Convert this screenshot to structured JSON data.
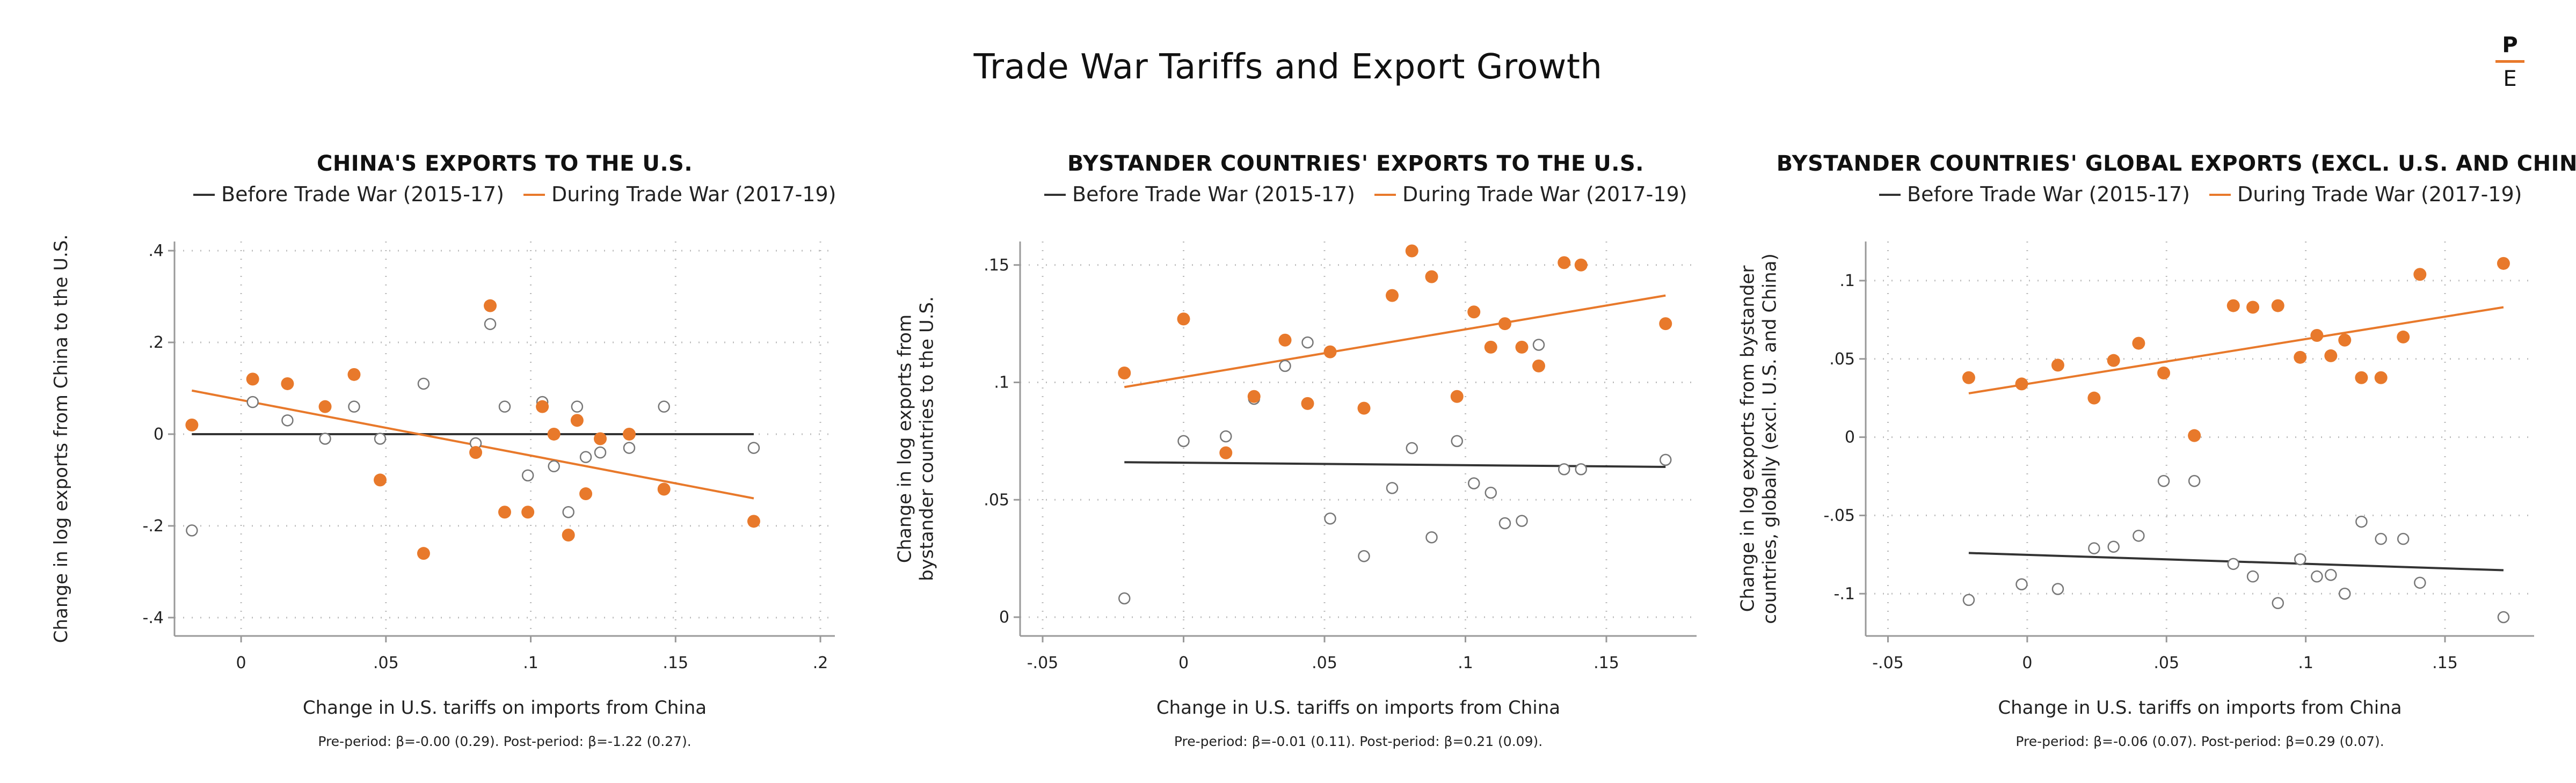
{
  "title": "Trade War Tariffs and Export Growth",
  "logo": {
    "top": "P",
    "bottom": "E",
    "accent": "#e8792b"
  },
  "colors": {
    "before": "#333333",
    "during": "#e8792b",
    "grid": "#bbbbbb",
    "axis": "#999999"
  },
  "chart_data": [
    {
      "type": "scatter",
      "title": "CHINA'S EXPORTS TO THE U.S.",
      "xlabel": "Change in U.S. tariffs on imports from China",
      "ylabel": "Change in log exports from China to the U.S.",
      "xlim": [
        -0.023,
        0.205
      ],
      "ylim": [
        -0.44,
        0.42
      ],
      "xticks": [
        0,
        0.05,
        0.1,
        0.15,
        0.2
      ],
      "xtick_labels": [
        "0",
        ".05",
        ".1",
        ".15",
        ".2"
      ],
      "yticks": [
        0.4,
        0.2,
        0,
        -0.2,
        -0.4
      ],
      "ytick_labels": [
        ".4",
        ".2",
        "0",
        "-.2",
        "-.4"
      ],
      "grid": true,
      "legend_position": "top",
      "note": "Pre-period: β=-0.00 (0.29). Post-period: β=-1.22 (0.27).",
      "series": [
        {
          "name": "Before Trade War (2015-17)",
          "marker": "hollow",
          "points": [
            [
              -0.017,
              -0.21
            ],
            [
              0.004,
              0.07
            ],
            [
              0.016,
              0.03
            ],
            [
              0.029,
              -0.01
            ],
            [
              0.039,
              0.06
            ],
            [
              0.048,
              -0.01
            ],
            [
              0.063,
              0.11
            ],
            [
              0.081,
              -0.02
            ],
            [
              0.086,
              0.24
            ],
            [
              0.091,
              0.06
            ],
            [
              0.099,
              -0.09
            ],
            [
              0.104,
              0.07
            ],
            [
              0.108,
              -0.07
            ],
            [
              0.113,
              -0.17
            ],
            [
              0.116,
              0.06
            ],
            [
              0.119,
              -0.05
            ],
            [
              0.124,
              -0.04
            ],
            [
              0.134,
              -0.03
            ],
            [
              0.146,
              0.06
            ],
            [
              0.177,
              -0.03
            ]
          ],
          "fit": [
            [
              -0.017,
              0.0
            ],
            [
              0.177,
              0.0
            ]
          ]
        },
        {
          "name": "During Trade War (2017-19)",
          "marker": "filled",
          "points": [
            [
              -0.017,
              0.02
            ],
            [
              0.004,
              0.12
            ],
            [
              0.016,
              0.11
            ],
            [
              0.029,
              0.06
            ],
            [
              0.039,
              0.13
            ],
            [
              0.048,
              -0.1
            ],
            [
              0.063,
              -0.26
            ],
            [
              0.081,
              -0.04
            ],
            [
              0.086,
              0.28
            ],
            [
              0.091,
              -0.17
            ],
            [
              0.099,
              -0.17
            ],
            [
              0.104,
              0.06
            ],
            [
              0.108,
              -0.0
            ],
            [
              0.113,
              -0.22
            ],
            [
              0.116,
              0.03
            ],
            [
              0.119,
              -0.13
            ],
            [
              0.124,
              -0.01
            ],
            [
              0.134,
              0.0
            ],
            [
              0.146,
              -0.12
            ],
            [
              0.177,
              -0.19
            ]
          ],
          "fit": [
            [
              -0.017,
              0.095
            ],
            [
              0.177,
              -0.14
            ]
          ]
        }
      ]
    },
    {
      "type": "scatter",
      "title": "BYSTANDER COUNTRIES' EXPORTS TO THE U.S.",
      "xlabel": "Change in U.S. tariffs on imports from China",
      "ylabel": "Change in log exports from bystander countries to the U.S.",
      "xlim": [
        -0.058,
        0.182
      ],
      "ylim": [
        -0.008,
        0.16
      ],
      "xticks": [
        -0.05,
        0,
        0.05,
        0.1,
        0.15
      ],
      "xtick_labels": [
        "-.05",
        "0",
        ".05",
        ".1",
        ".15"
      ],
      "yticks": [
        0.15,
        0.1,
        0.05,
        0
      ],
      "ytick_labels": [
        ".15",
        ".1",
        ".05",
        "0"
      ],
      "grid": true,
      "legend_position": "top",
      "note": "Pre-period: β=-0.01 (0.11). Post-period: β=0.21 (0.09).",
      "series": [
        {
          "name": "Before Trade War (2015-17)",
          "marker": "hollow",
          "points": [
            [
              -0.021,
              0.008
            ],
            [
              0.0,
              0.075
            ],
            [
              0.015,
              0.077
            ],
            [
              0.025,
              0.093
            ],
            [
              0.036,
              0.107
            ],
            [
              0.044,
              0.117
            ],
            [
              0.052,
              0.042
            ],
            [
              0.064,
              0.026
            ],
            [
              0.074,
              0.055
            ],
            [
              0.081,
              0.072
            ],
            [
              0.088,
              0.034
            ],
            [
              0.097,
              0.075
            ],
            [
              0.103,
              0.057
            ],
            [
              0.109,
              0.053
            ],
            [
              0.114,
              0.04
            ],
            [
              0.12,
              0.041
            ],
            [
              0.126,
              0.116
            ],
            [
              0.135,
              0.063
            ],
            [
              0.141,
              0.063
            ],
            [
              0.171,
              0.067
            ]
          ],
          "fit": [
            [
              -0.021,
              0.066
            ],
            [
              0.171,
              0.064
            ]
          ]
        },
        {
          "name": "During Trade War (2017-19)",
          "marker": "filled",
          "points": [
            [
              -0.021,
              0.104
            ],
            [
              0.0,
              0.127
            ],
            [
              0.015,
              0.07
            ],
            [
              0.025,
              0.094
            ],
            [
              0.036,
              0.118
            ],
            [
              0.044,
              0.091
            ],
            [
              0.052,
              0.113
            ],
            [
              0.064,
              0.089
            ],
            [
              0.074,
              0.137
            ],
            [
              0.081,
              0.156
            ],
            [
              0.088,
              0.145
            ],
            [
              0.097,
              0.094
            ],
            [
              0.103,
              0.13
            ],
            [
              0.109,
              0.115
            ],
            [
              0.114,
              0.125
            ],
            [
              0.12,
              0.115
            ],
            [
              0.126,
              0.107
            ],
            [
              0.135,
              0.151
            ],
            [
              0.141,
              0.15
            ],
            [
              0.171,
              0.125
            ]
          ],
          "fit": [
            [
              -0.021,
              0.098
            ],
            [
              0.171,
              0.137
            ]
          ]
        }
      ]
    },
    {
      "type": "scatter",
      "title": "BYSTANDER COUNTRIES' GLOBAL EXPORTS (EXCL. U.S. AND CHINA)",
      "xlabel": "Change in U.S. tariffs on imports from China",
      "ylabel": "Change in log exports from bystander countries, globally (excl. U.S. and China)",
      "xlim": [
        -0.058,
        0.182
      ],
      "ylim": [
        -0.127,
        0.125
      ],
      "xticks": [
        -0.05,
        0,
        0.05,
        0.1,
        0.15
      ],
      "xtick_labels": [
        "-.05",
        "0",
        ".05",
        ".1",
        ".15"
      ],
      "yticks": [
        0.1,
        0.05,
        0,
        -0.05,
        -0.1
      ],
      "ytick_labels": [
        ".1",
        ".05",
        "0",
        "-.05",
        "-.1"
      ],
      "grid": true,
      "legend_position": "top",
      "note": "Pre-period: β=-0.06 (0.07). Post-period: β=0.29 (0.07).",
      "series": [
        {
          "name": "Before Trade War (2015-17)",
          "marker": "hollow",
          "points": [
            [
              -0.021,
              -0.104
            ],
            [
              -0.002,
              -0.094
            ],
            [
              0.011,
              -0.097
            ],
            [
              0.024,
              -0.071
            ],
            [
              0.031,
              -0.07
            ],
            [
              0.04,
              -0.063
            ],
            [
              0.049,
              -0.028
            ],
            [
              0.06,
              -0.028
            ],
            [
              0.074,
              -0.081
            ],
            [
              0.081,
              -0.089
            ],
            [
              0.09,
              -0.106
            ],
            [
              0.098,
              -0.078
            ],
            [
              0.104,
              -0.089
            ],
            [
              0.109,
              -0.088
            ],
            [
              0.114,
              -0.1
            ],
            [
              0.12,
              -0.054
            ],
            [
              0.127,
              -0.065
            ],
            [
              0.135,
              -0.065
            ],
            [
              0.141,
              -0.093
            ],
            [
              0.171,
              -0.115
            ]
          ],
          "fit": [
            [
              -0.021,
              -0.074
            ],
            [
              0.171,
              -0.085
            ]
          ]
        },
        {
          "name": "During Trade War (2017-19)",
          "marker": "filled",
          "points": [
            [
              -0.021,
              0.038
            ],
            [
              -0.002,
              0.034
            ],
            [
              0.011,
              0.046
            ],
            [
              0.024,
              0.025
            ],
            [
              0.031,
              0.049
            ],
            [
              0.04,
              0.06
            ],
            [
              0.049,
              0.041
            ],
            [
              0.06,
              0.001
            ],
            [
              0.074,
              0.084
            ],
            [
              0.081,
              0.083
            ],
            [
              0.09,
              0.084
            ],
            [
              0.098,
              0.051
            ],
            [
              0.104,
              0.065
            ],
            [
              0.109,
              0.052
            ],
            [
              0.114,
              0.062
            ],
            [
              0.12,
              0.038
            ],
            [
              0.127,
              0.038
            ],
            [
              0.135,
              0.064
            ],
            [
              0.141,
              0.104
            ],
            [
              0.171,
              0.111
            ]
          ],
          "fit": [
            [
              -0.021,
              0.028
            ],
            [
              0.171,
              0.083
            ]
          ]
        }
      ]
    }
  ]
}
